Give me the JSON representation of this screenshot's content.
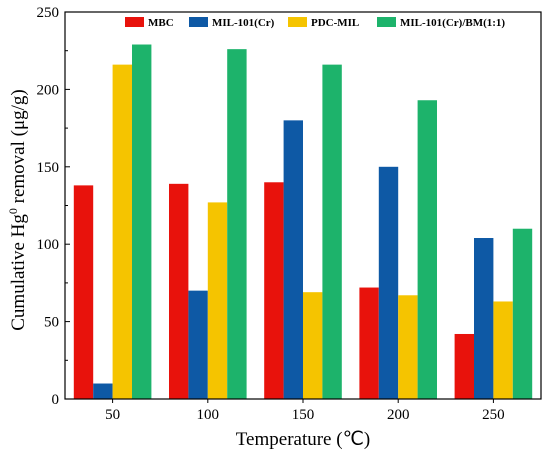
{
  "chart_data": {
    "type": "bar",
    "categories": [
      "50",
      "100",
      "150",
      "200",
      "250"
    ],
    "series": [
      {
        "name": "MBC",
        "color": "#e8120c",
        "values": [
          138,
          139,
          140,
          72,
          42
        ]
      },
      {
        "name": "MIL-101(Cr)",
        "color": "#0e59a5",
        "values": [
          10,
          70,
          180,
          150,
          104
        ]
      },
      {
        "name": "PDC-MIL",
        "color": "#f5c400",
        "values": [
          216,
          127,
          69,
          67,
          63
        ]
      },
      {
        "name": "MIL-101(Cr)/BM(1:1)",
        "color": "#1db36b",
        "values": [
          229,
          226,
          216,
          193,
          110
        ]
      }
    ],
    "xlabel": "Temperature (℃)",
    "ylabel_main": "Cumulative Hg",
    "ylabel_sup": "0",
    "ylabel_rest": " removal (μg/g)",
    "ylim": [
      0,
      250
    ],
    "yticks": [
      "0",
      "50",
      "100",
      "150",
      "200",
      "250"
    ],
    "grid": false,
    "legend_position": "top"
  }
}
